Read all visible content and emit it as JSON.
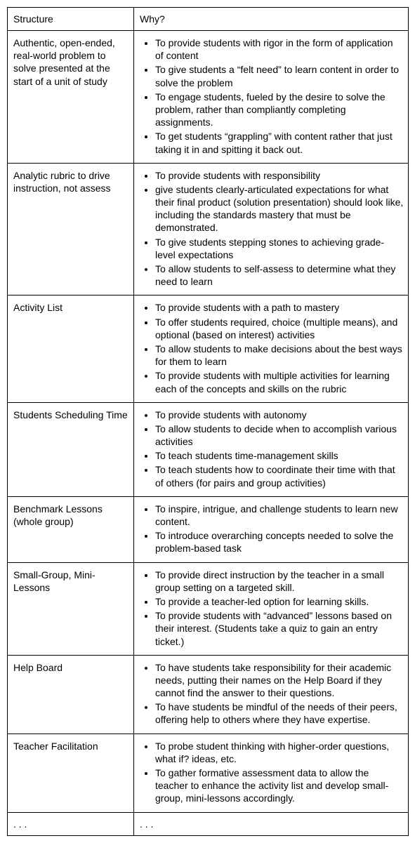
{
  "header": {
    "structure": "Structure",
    "why": "Why?"
  },
  "rows": [
    {
      "structure": "Authentic, open-ended, real-world problem to solve presented at the start of a unit of study",
      "why": [
        "To provide students with rigor in the form of application of content",
        "To give students a “felt need” to learn content in order to solve the problem",
        "To engage students, fueled by the desire to solve the problem, rather than compliantly completing assignments.",
        "To get students “grappling” with content rather that just taking it in and spitting it back out."
      ]
    },
    {
      "structure": "Analytic rubric to drive instruction, not assess",
      "why": [
        "To provide students with responsibility",
        "give students clearly-articulated expectations for what their final product (solution presentation) should look like, including the standards mastery that must be demonstrated.",
        "To give students stepping stones to achieving grade-level expectations",
        "To allow students to self-assess to determine what they need to learn"
      ]
    },
    {
      "structure": "Activity List",
      "why": [
        "To provide students with a path to mastery",
        "To offer students required, choice (multiple means), and optional (based on interest) activities",
        "To allow students to make decisions about the best ways for them to learn",
        "To provide students with multiple activities for learning each of the concepts and skills on the rubric"
      ]
    },
    {
      "structure": "Students Scheduling Time",
      "why": [
        "To provide students with autonomy",
        "To allow students to decide when to accomplish various activities",
        "To teach students time-management skills",
        "To teach students how to coordinate their time with that of others (for pairs and group activities)"
      ]
    },
    {
      "structure": "Benchmark Lessons (whole group)",
      "why": [
        "To inspire, intrigue, and challenge students to learn new content.",
        "To introduce overarching concepts needed to solve the problem-based task"
      ]
    },
    {
      "structure": "Small-Group, Mini-Lessons",
      "why": [
        "To provide direct instruction by the teacher in a small group setting on a targeted skill.",
        "To provide a teacher-led option for learning skills.",
        "To provide students with “advanced” lessons based on their interest. (Students take a quiz to gain an entry ticket.)"
      ]
    },
    {
      "structure": "Help Board",
      "why": [
        "To have students take responsibility for their academic needs, putting their names on the Help Board if they cannot find the answer to their questions.",
        "To have students be mindful of the needs of their peers, offering help to others where they have expertise."
      ]
    },
    {
      "structure": "Teacher Facilitation",
      "why": [
        "To probe student thinking with higher-order questions, what if? ideas, etc.",
        "To gather formative assessment data to allow the teacher to enhance the activity list and develop small-group, mini-lessons accordingly."
      ]
    }
  ],
  "footer": {
    "left": ". . .",
    "right": ". . ."
  }
}
